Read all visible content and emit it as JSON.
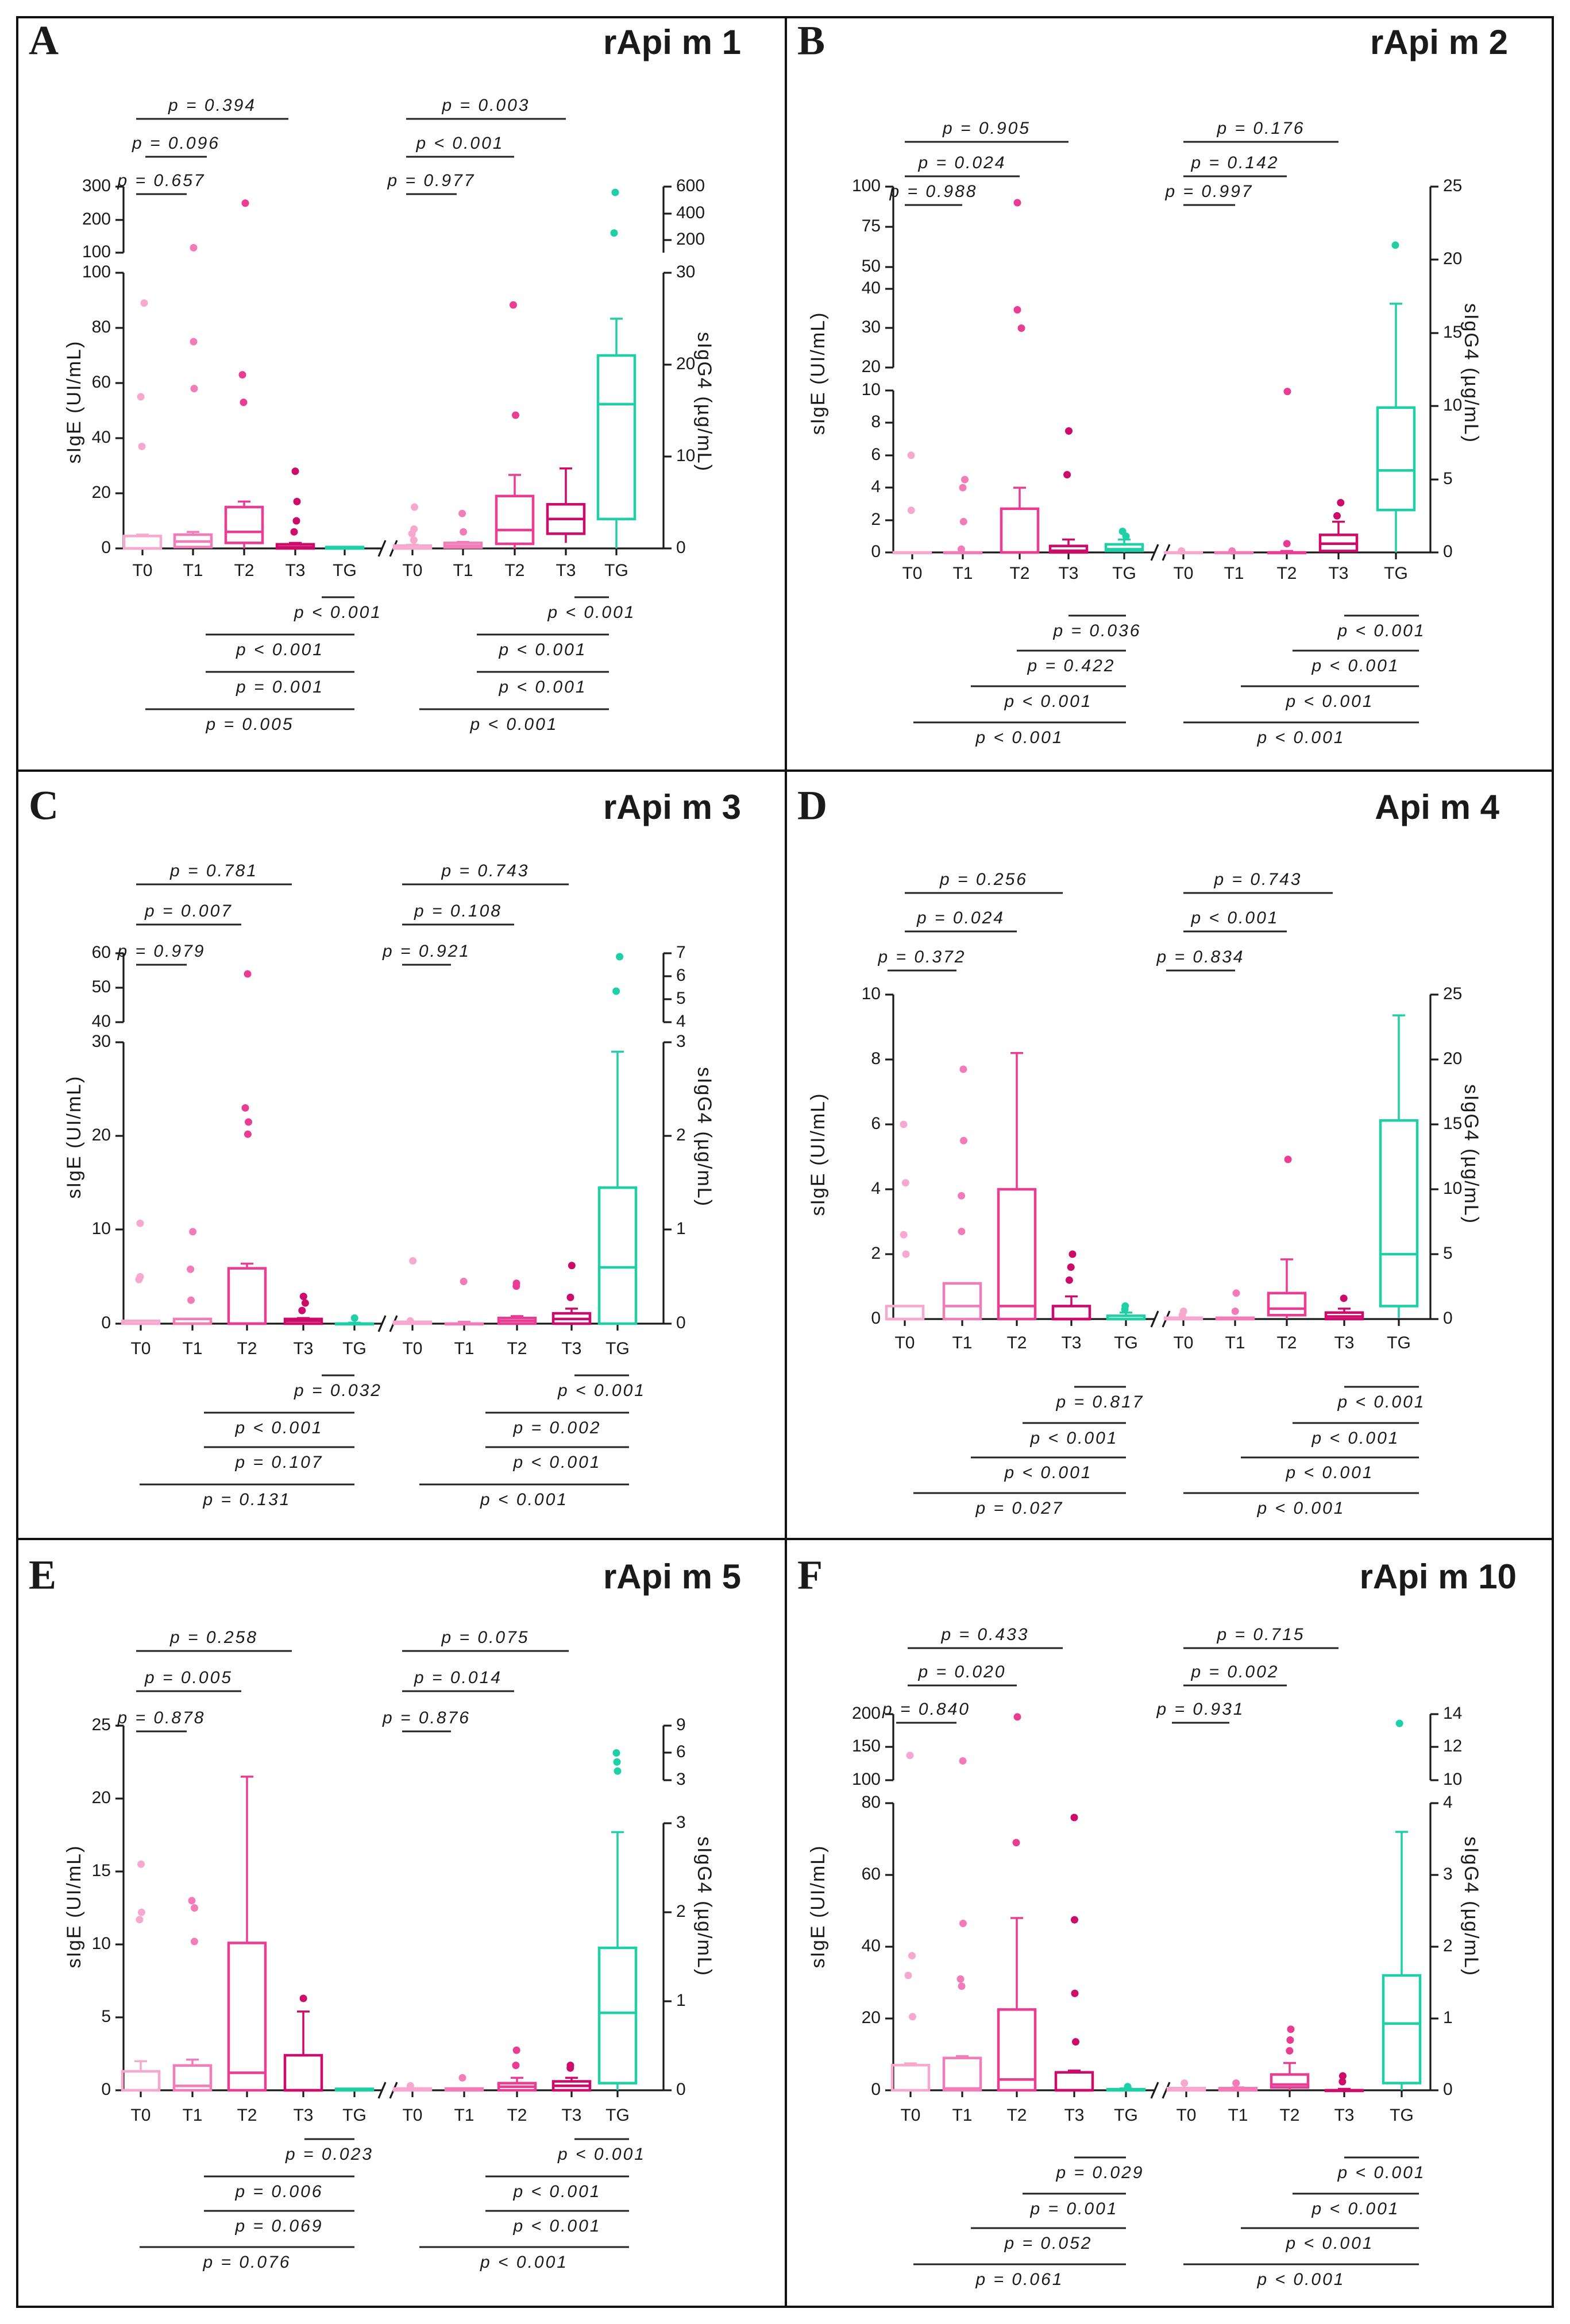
{
  "figure": {
    "colors": {
      "T0": "#f7a8cf",
      "T1": "#f27cb8",
      "T2": "#ea3c93",
      "T3": "#cc0b6a",
      "TG": "#1fcfa5"
    },
    "group_labels": [
      "T0",
      "T1",
      "T2",
      "T3",
      "TG"
    ],
    "left_axis_label": "sIgE (UI/mL)",
    "right_axis_label": "sIgG4 (µg/mL)"
  },
  "chart_data": [
    {
      "panel": "A",
      "title": "rApi m 1",
      "type": "box",
      "left": {
        "ticks": [
          "0",
          "20",
          "40",
          "60",
          "80",
          "100"
        ],
        "break_ticks": [
          "100",
          "200",
          "300"
        ]
      },
      "right": {
        "ticks": [
          "0",
          "10",
          "20",
          "30"
        ],
        "break_ticks": [
          "200",
          "400",
          "600"
        ]
      },
      "sige_boxes": [
        {
          "g": "T0",
          "min": 0,
          "q1": 0,
          "med": 0,
          "q3": 4.5,
          "max": 5,
          "out": [
            37,
            55,
            89
          ]
        },
        {
          "g": "T1",
          "min": 0,
          "q1": 0.5,
          "med": 2.5,
          "q3": 5,
          "max": 6,
          "out": [
            58,
            75,
            115
          ]
        },
        {
          "g": "T2",
          "min": 0,
          "q1": 2,
          "med": 6,
          "q3": 15,
          "max": 17,
          "out": [
            53,
            63,
            250
          ]
        },
        {
          "g": "T3",
          "min": 0,
          "q1": 0,
          "med": 0.5,
          "q3": 1.5,
          "max": 2,
          "out": [
            6,
            10,
            17,
            28
          ]
        },
        {
          "g": "TG",
          "min": 0,
          "q1": 0,
          "med": 0,
          "q3": 0.5,
          "max": 0.5,
          "out": []
        }
      ],
      "sigg4_boxes": [
        {
          "g": "T0",
          "min": 0,
          "q1": 0,
          "med": 0,
          "q3": 0.3,
          "max": 0.4,
          "out": [
            0.9,
            1.6,
            2.1,
            4.5
          ]
        },
        {
          "g": "T1",
          "min": 0,
          "q1": 0.1,
          "med": 0.3,
          "q3": 0.6,
          "max": 0.7,
          "out": [
            1.8,
            3.8
          ]
        },
        {
          "g": "T2",
          "min": 0,
          "q1": 0.5,
          "med": 2,
          "q3": 5.7,
          "max": 8,
          "out": [
            14.5,
            26.5
          ]
        },
        {
          "g": "T3",
          "min": 0.6,
          "q1": 1.6,
          "med": 3.2,
          "q3": 4.8,
          "max": 8.7,
          "out": []
        },
        {
          "g": "TG",
          "min": 0,
          "q1": 3.2,
          "med": 15.7,
          "q3": 21,
          "max": 25,
          "out": [
            200,
            550
          ]
        }
      ],
      "top_pvals": {
        "left": [
          "p = 0.394",
          "p = 0.096",
          "p = 0.657"
        ],
        "right": [
          "p = 0.003",
          "p < 0.001",
          "p = 0.977"
        ]
      },
      "bottom_pvals": {
        "left": [
          "p < 0.001",
          "p < 0.001",
          "p = 0.001",
          "p = 0.005"
        ],
        "right": [
          "p < 0.001",
          "p < 0.001",
          "p < 0.001",
          "p < 0.001"
        ]
      }
    },
    {
      "panel": "B",
      "title": "rApi m 2",
      "type": "box",
      "left": {
        "ticks": [
          "0",
          "2",
          "4",
          "6",
          "8",
          "10"
        ],
        "mid_ticks": [
          "20",
          "30",
          "40"
        ],
        "break_ticks": [
          "50",
          "75",
          "100"
        ]
      },
      "right": {
        "ticks": [
          "0",
          "5",
          "10",
          "15",
          "20",
          "25"
        ]
      },
      "sige_boxes": [
        {
          "g": "T0",
          "min": 0,
          "q1": 0,
          "med": 0,
          "q3": 0,
          "max": 0,
          "out": [
            2.6,
            6
          ]
        },
        {
          "g": "T1",
          "min": 0,
          "q1": 0,
          "med": 0,
          "q3": 0,
          "max": 0,
          "out": [
            0.2,
            1.9,
            4,
            4.5
          ]
        },
        {
          "g": "T2",
          "min": 0,
          "q1": 0,
          "med": 0,
          "q3": 2.7,
          "max": 4,
          "out": [
            25,
            32,
            88
          ]
        },
        {
          "g": "T3",
          "min": 0,
          "q1": 0,
          "med": 0.1,
          "q3": 0.4,
          "max": 0.8,
          "out": [
            4.8,
            7.5
          ]
        },
        {
          "g": "TG",
          "min": 0,
          "q1": 0.1,
          "med": 0.2,
          "q3": 0.5,
          "max": 0.8,
          "out": [
            1,
            1.3
          ]
        }
      ],
      "sigg4_boxes": [
        {
          "g": "T0",
          "min": 0,
          "q1": 0,
          "med": 0,
          "q3": 0,
          "max": 0,
          "out": [
            0.1,
            0.1
          ]
        },
        {
          "g": "T1",
          "min": 0,
          "q1": 0,
          "med": 0,
          "q3": 0,
          "max": 0,
          "out": [
            0.1
          ]
        },
        {
          "g": "T2",
          "min": 0,
          "q1": 0,
          "med": 0,
          "q3": 0,
          "max": 0.1,
          "out": [
            0.6,
            11
          ]
        },
        {
          "g": "T3",
          "min": 0,
          "q1": 0.1,
          "med": 0.6,
          "q3": 1.2,
          "max": 2.1,
          "out": [
            2.5,
            3.4
          ]
        },
        {
          "g": "TG",
          "min": 0,
          "q1": 2.9,
          "med": 5.6,
          "q3": 9.9,
          "max": 17,
          "out": [
            21
          ]
        }
      ],
      "top_pvals": {
        "left": [
          "p = 0.905",
          "p = 0.024",
          "p = 0.988"
        ],
        "right": [
          "p = 0.176",
          "p = 0.142",
          "p = 0.997"
        ]
      },
      "bottom_pvals": {
        "left": [
          "p = 0.036",
          "p = 0.422",
          "p < 0.001",
          "p < 0.001"
        ],
        "right": [
          "p < 0.001",
          "p < 0.001",
          "p < 0.001",
          "p < 0.001"
        ]
      }
    },
    {
      "panel": "C",
      "title": "rApi m 3",
      "type": "box",
      "left": {
        "ticks": [
          "0",
          "10",
          "20",
          "30"
        ],
        "break_ticks": [
          "40",
          "50",
          "60"
        ]
      },
      "right": {
        "ticks": [
          "0",
          "1",
          "2",
          "3"
        ],
        "break_ticks": [
          "4",
          "5",
          "6",
          "7"
        ]
      },
      "sige_boxes": [
        {
          "g": "T0",
          "min": 0,
          "q1": 0,
          "med": 0,
          "q3": 0.3,
          "max": 0.3,
          "out": [
            4.7,
            5,
            10.7
          ]
        },
        {
          "g": "T1",
          "min": 0,
          "q1": 0,
          "med": 0,
          "q3": 0.5,
          "max": 0.5,
          "out": [
            2.5,
            5.8,
            9.8
          ]
        },
        {
          "g": "T2",
          "min": 0,
          "q1": 0,
          "med": 0,
          "q3": 5.9,
          "max": 6.4,
          "out": [
            20.2,
            21.5,
            23,
            51
          ]
        },
        {
          "g": "T3",
          "min": 0,
          "q1": 0,
          "med": 0.3,
          "q3": 0.5,
          "max": 0.6,
          "out": [
            1.4,
            2.2,
            2.9
          ]
        },
        {
          "g": "TG",
          "min": 0,
          "q1": 0,
          "med": 0,
          "q3": 0,
          "max": 0.1,
          "out": [
            0.6
          ]
        }
      ],
      "sigg4_boxes": [
        {
          "g": "T0",
          "min": 0,
          "q1": 0,
          "med": 0,
          "q3": 0.02,
          "max": 0.02,
          "out": [
            0.03,
            0.67
          ]
        },
        {
          "g": "T1",
          "min": 0,
          "q1": 0,
          "med": 0,
          "q3": 0,
          "max": 0.02,
          "out": [
            0.45
          ]
        },
        {
          "g": "T2",
          "min": 0,
          "q1": 0,
          "med": 0.03,
          "q3": 0.06,
          "max": 0.08,
          "out": [
            0.4,
            0.43
          ]
        },
        {
          "g": "T3",
          "min": 0,
          "q1": 0,
          "med": 0.05,
          "q3": 0.11,
          "max": 0.16,
          "out": [
            0.28,
            0.62
          ]
        },
        {
          "g": "TG",
          "min": 0,
          "q1": 0,
          "med": 0.6,
          "q3": 1.45,
          "max": 2.9,
          "out": [
            4.8,
            6.8
          ]
        }
      ],
      "top_pvals": {
        "left": [
          "p = 0.781",
          "p = 0.007",
          "p = 0.979"
        ],
        "right": [
          "p = 0.743",
          "p = 0.108",
          "p = 0.921"
        ]
      },
      "bottom_pvals": {
        "left": [
          "p = 0.032",
          "p < 0.001",
          "p = 0.107",
          "p = 0.131"
        ],
        "right": [
          "p < 0.001",
          "p = 0.002",
          "p < 0.001",
          "p < 0.001"
        ]
      }
    },
    {
      "panel": "D",
      "title": "Api m 4",
      "type": "box",
      "left": {
        "ticks": [
          "0",
          "2",
          "4",
          "6",
          "8",
          "10"
        ]
      },
      "right": {
        "ticks": [
          "0",
          "5",
          "10",
          "15",
          "20",
          "25"
        ]
      },
      "sige_boxes": [
        {
          "g": "T0",
          "min": 0,
          "q1": 0,
          "med": 0,
          "q3": 0.4,
          "max": 0.4,
          "out": [
            2,
            2.6,
            4.2,
            6
          ]
        },
        {
          "g": "T1",
          "min": 0,
          "q1": 0,
          "med": 0.4,
          "q3": 1.1,
          "max": 1.1,
          "out": [
            2.7,
            3.8,
            5.5,
            7.7
          ]
        },
        {
          "g": "T2",
          "min": 0,
          "q1": 0,
          "med": 0.4,
          "q3": 4,
          "max": 8.2,
          "out": []
        },
        {
          "g": "T3",
          "min": 0,
          "q1": 0,
          "med": 0,
          "q3": 0.4,
          "max": 0.7,
          "out": [
            1.2,
            1.6,
            2
          ]
        },
        {
          "g": "TG",
          "min": 0,
          "q1": 0,
          "med": 0,
          "q3": 0.1,
          "max": 0.2,
          "out": [
            0.3,
            0.4
          ]
        }
      ],
      "sigg4_boxes": [
        {
          "g": "T0",
          "min": 0,
          "q1": 0,
          "med": 0,
          "q3": 0.1,
          "max": 0.1,
          "out": [
            0.3,
            0.6
          ]
        },
        {
          "g": "T1",
          "min": 0,
          "q1": 0,
          "med": 0,
          "q3": 0.1,
          "max": 0.1,
          "out": [
            0.6,
            2
          ]
        },
        {
          "g": "T2",
          "min": 0,
          "q1": 0.3,
          "med": 0.8,
          "q3": 2,
          "max": 4.6,
          "out": [
            12.3
          ]
        },
        {
          "g": "T3",
          "min": 0,
          "q1": 0,
          "med": 0.2,
          "q3": 0.5,
          "max": 0.8,
          "out": [
            1.6
          ]
        },
        {
          "g": "TG",
          "min": 0.1,
          "q1": 1,
          "med": 5,
          "q3": 15.3,
          "max": 23.4,
          "out": []
        }
      ],
      "top_pvals": {
        "left": [
          "p = 0.256",
          "p = 0.024",
          "p = 0.372"
        ],
        "right": [
          "p = 0.743",
          "p < 0.001",
          "p = 0.834"
        ]
      },
      "bottom_pvals": {
        "left": [
          "p = 0.817",
          "p < 0.001",
          "p < 0.001",
          "p = 0.027"
        ],
        "right": [
          "p < 0.001",
          "p < 0.001",
          "p < 0.001",
          "p < 0.001"
        ]
      }
    },
    {
      "panel": "E",
      "title": "rApi m 5",
      "type": "box",
      "left": {
        "ticks": [
          "0",
          "5",
          "10",
          "15",
          "20",
          "25"
        ]
      },
      "right": {
        "ticks": [
          "0",
          "1",
          "2",
          "3"
        ],
        "break_ticks": [
          "3",
          "6",
          "9"
        ]
      },
      "sige_boxes": [
        {
          "g": "T0",
          "min": 0,
          "q1": 0,
          "med": 0,
          "q3": 1.3,
          "max": 2,
          "out": [
            11.7,
            12.2,
            15.5
          ]
        },
        {
          "g": "T1",
          "min": 0,
          "q1": 0,
          "med": 0.3,
          "q3": 1.7,
          "max": 2.1,
          "out": [
            10.2,
            12.5,
            13
          ]
        },
        {
          "g": "T2",
          "min": 0,
          "q1": 0,
          "med": 1.2,
          "q3": 10.1,
          "max": 21.5,
          "out": []
        },
        {
          "g": "T3",
          "min": 0,
          "q1": 0,
          "med": 0,
          "q3": 2.4,
          "max": 5.4,
          "out": [
            6.3
          ]
        },
        {
          "g": "TG",
          "min": 0,
          "q1": 0,
          "med": 0,
          "q3": 0.1,
          "max": 0.1,
          "out": []
        }
      ],
      "sigg4_boxes": [
        {
          "g": "T0",
          "min": 0,
          "q1": 0,
          "med": 0,
          "q3": 0.02,
          "max": 0.02,
          "out": [
            0.05
          ]
        },
        {
          "g": "T1",
          "min": 0,
          "q1": 0,
          "med": 0,
          "q3": 0.02,
          "max": 0.02,
          "out": [
            0.14
          ]
        },
        {
          "g": "T2",
          "min": 0,
          "q1": 0,
          "med": 0.04,
          "q3": 0.08,
          "max": 0.14,
          "out": [
            0.28,
            0.45
          ]
        },
        {
          "g": "T3",
          "min": 0,
          "q1": 0,
          "med": 0.05,
          "q3": 0.1,
          "max": 0.14,
          "out": [
            0.25,
            0.28
          ]
        },
        {
          "g": "TG",
          "min": 0,
          "q1": 0.08,
          "med": 0.87,
          "q3": 1.6,
          "max": 2.9,
          "out": [
            4,
            5,
            6
          ]
        }
      ],
      "top_pvals": {
        "left": [
          "p = 0.258",
          "p = 0.005",
          "p = 0.878"
        ],
        "right": [
          "p = 0.075",
          "p = 0.014",
          "p = 0.876"
        ]
      },
      "bottom_pvals": {
        "left": [
          "p = 0.023",
          "p = 0.006",
          "p = 0.069",
          "p = 0.076"
        ],
        "right": [
          "p < 0.001",
          "p < 0.001",
          "p < 0.001",
          "p < 0.001"
        ]
      }
    },
    {
      "panel": "F",
      "title": "rApi m 10",
      "type": "box",
      "left": {
        "ticks": [
          "0",
          "20",
          "40",
          "60",
          "80"
        ],
        "break_ticks": [
          "100",
          "150",
          "200"
        ]
      },
      "right": {
        "ticks": [
          "0",
          "1",
          "2",
          "3",
          "4"
        ],
        "break_ticks": [
          "10",
          "12",
          "14"
        ]
      },
      "sige_boxes": [
        {
          "g": "T0",
          "min": 0,
          "q1": 0,
          "med": 0,
          "q3": 7,
          "max": 7.5,
          "out": [
            20.5,
            32,
            37.5,
            125
          ]
        },
        {
          "g": "T1",
          "min": 0,
          "q1": 0,
          "med": 0.5,
          "q3": 9,
          "max": 9.5,
          "out": [
            29,
            31,
            46.5,
            115
          ]
        },
        {
          "g": "T2",
          "min": 0,
          "q1": 0,
          "med": 3,
          "q3": 22.5,
          "max": 48,
          "out": [
            69,
            195
          ]
        },
        {
          "g": "T3",
          "min": 0,
          "q1": 0,
          "med": 0,
          "q3": 5,
          "max": 5.5,
          "out": [
            13.5,
            27,
            47.5,
            76
          ]
        },
        {
          "g": "TG",
          "min": 0,
          "q1": 0,
          "med": 0,
          "q3": 0.3,
          "max": 0.5,
          "out": [
            1
          ]
        }
      ],
      "sigg4_boxes": [
        {
          "g": "T0",
          "min": 0,
          "q1": 0,
          "med": 0,
          "q3": 0.03,
          "max": 0.03,
          "out": [
            0.1
          ]
        },
        {
          "g": "T1",
          "min": 0,
          "q1": 0,
          "med": 0,
          "q3": 0.03,
          "max": 0.04,
          "out": [
            0.1
          ]
        },
        {
          "g": "T2",
          "min": 0,
          "q1": 0.04,
          "med": 0.08,
          "q3": 0.22,
          "max": 0.38,
          "out": [
            0.55,
            0.7,
            0.85
          ]
        },
        {
          "g": "T3",
          "min": 0,
          "q1": 0,
          "med": 0,
          "q3": 0,
          "max": 0.02,
          "out": [
            0.12,
            0.2
          ]
        },
        {
          "g": "TG",
          "min": 0,
          "q1": 0.1,
          "med": 0.93,
          "q3": 1.6,
          "max": 3.6,
          "out": [
            12.6
          ]
        }
      ],
      "top_pvals": {
        "left": [
          "p = 0.433",
          "p = 0.020",
          "p = 0.840"
        ],
        "right": [
          "p = 0.715",
          "p = 0.002",
          "p = 0.931"
        ]
      },
      "bottom_pvals": {
        "left": [
          "p = 0.029",
          "p = 0.001",
          "p = 0.052",
          "p = 0.061"
        ],
        "right": [
          "p < 0.001",
          "p < 0.001",
          "p < 0.001",
          "p < 0.001"
        ]
      }
    }
  ]
}
